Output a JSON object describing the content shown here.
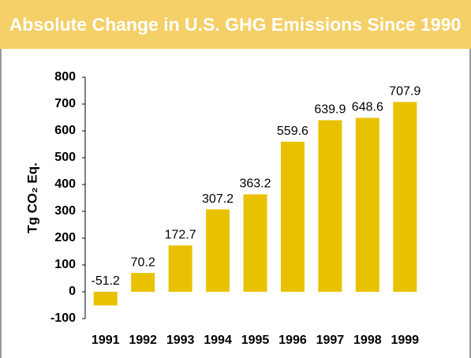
{
  "chart_data": {
    "type": "bar",
    "title": "Absolute Change in U.S. GHG Emissions Since 1990",
    "ylabel": "Tg CO₂ Eq.",
    "categories": [
      "1991",
      "1992",
      "1993",
      "1994",
      "1995",
      "1996",
      "1997",
      "1998",
      "1999"
    ],
    "values": [
      -51.2,
      70.2,
      172.7,
      307.2,
      363.2,
      559.6,
      639.9,
      648.6,
      707.9
    ],
    "color": "#e8c200",
    "ylim": [
      -100,
      800
    ],
    "yticks": [
      -100,
      0,
      100,
      200,
      300,
      400,
      500,
      600,
      700,
      800
    ],
    "grid": false
  }
}
